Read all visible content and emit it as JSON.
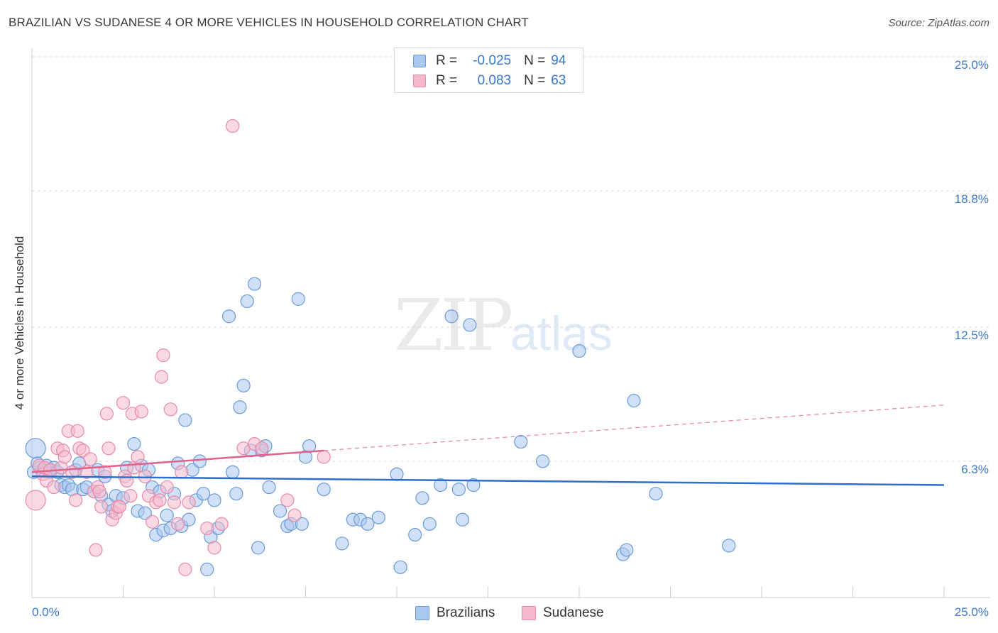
{
  "title": "BRAZILIAN VS SUDANESE 4 OR MORE VEHICLES IN HOUSEHOLD CORRELATION CHART",
  "source": "Source: ZipAtlas.com",
  "watermark": {
    "zip": "ZIP",
    "atlas": "atlas"
  },
  "legend": {
    "rows": [
      {
        "r_label": "R =",
        "r_value": "-0.025",
        "n_label": "N =",
        "n_value": "94"
      },
      {
        "r_label": "R =",
        "r_value": "0.083",
        "n_label": "N =",
        "n_value": "63"
      }
    ]
  },
  "bottom_legend": {
    "brazilians": "Brazilians",
    "sudanese": "Sudanese"
  },
  "colors": {
    "blue_fill": "#aac7ee",
    "blue_stroke": "#6a9bd8",
    "blue_line": "#2f6fca",
    "pink_fill": "#f6b9cc",
    "pink_stroke": "#e88aa8",
    "pink_line": "#e0628f",
    "tick": "#3b78c9",
    "grid": "#d9d9d9"
  },
  "chart_data": {
    "type": "scatter",
    "title": "BRAZILIAN VS SUDANESE 4 OR MORE VEHICLES IN HOUSEHOLD CORRELATION CHART",
    "xlabel": "",
    "ylabel": "4 or more Vehicles in Household",
    "xlim": [
      0,
      25
    ],
    "ylim": [
      0,
      25
    ],
    "x_tick_labels": [
      "0.0%",
      "25.0%"
    ],
    "y_ticks": [
      6.3,
      12.5,
      18.8,
      25.0
    ],
    "y_tick_labels": [
      "6.3%",
      "12.5%",
      "18.8%",
      "25.0%"
    ],
    "grid": "horizontal dashed",
    "legend_position": "top-center",
    "series": [
      {
        "name": "Brazilians",
        "r": -0.025,
        "n": 94,
        "trend": {
          "x0": 0,
          "y0": 5.6,
          "x1": 25,
          "y1": 5.2
        },
        "points": [
          [
            0.1,
            6.9
          ],
          [
            0.2,
            6.0
          ],
          [
            0.3,
            5.9
          ],
          [
            0.4,
            6.1
          ],
          [
            0.5,
            5.8
          ],
          [
            0.6,
            6.0
          ],
          [
            0.7,
            5.8
          ],
          [
            0.8,
            5.2
          ],
          [
            0.9,
            5.1
          ],
          [
            1.0,
            5.2
          ],
          [
            1.1,
            5.0
          ],
          [
            1.2,
            5.9
          ],
          [
            1.3,
            6.2
          ],
          [
            1.4,
            5.0
          ],
          [
            1.5,
            5.1
          ],
          [
            1.7,
            4.9
          ],
          [
            1.8,
            5.9
          ],
          [
            1.9,
            4.7
          ],
          [
            2.0,
            5.6
          ],
          [
            2.1,
            4.3
          ],
          [
            2.2,
            4.0
          ],
          [
            2.3,
            4.7
          ],
          [
            2.5,
            4.6
          ],
          [
            2.6,
            6.0
          ],
          [
            2.8,
            7.1
          ],
          [
            2.9,
            4.0
          ],
          [
            3.0,
            6.1
          ],
          [
            3.1,
            3.9
          ],
          [
            3.2,
            5.9
          ],
          [
            3.3,
            5.1
          ],
          [
            3.4,
            2.9
          ],
          [
            3.5,
            4.9
          ],
          [
            3.6,
            3.1
          ],
          [
            3.7,
            3.8
          ],
          [
            3.8,
            3.2
          ],
          [
            3.9,
            4.8
          ],
          [
            4.0,
            6.2
          ],
          [
            4.1,
            3.3
          ],
          [
            4.2,
            8.2
          ],
          [
            4.3,
            3.6
          ],
          [
            4.4,
            5.9
          ],
          [
            4.5,
            4.5
          ],
          [
            4.6,
            6.3
          ],
          [
            4.7,
            4.8
          ],
          [
            4.8,
            1.3
          ],
          [
            4.9,
            2.8
          ],
          [
            5.0,
            4.5
          ],
          [
            5.1,
            3.2
          ],
          [
            5.4,
            13.0
          ],
          [
            5.5,
            5.8
          ],
          [
            5.6,
            4.8
          ],
          [
            5.7,
            8.8
          ],
          [
            5.8,
            9.8
          ],
          [
            5.9,
            13.7
          ],
          [
            6.0,
            6.8
          ],
          [
            6.1,
            14.5
          ],
          [
            6.2,
            2.3
          ],
          [
            6.3,
            6.8
          ],
          [
            6.4,
            7.0
          ],
          [
            6.5,
            5.1
          ],
          [
            6.8,
            4.0
          ],
          [
            7.0,
            3.3
          ],
          [
            7.1,
            3.4
          ],
          [
            7.3,
            13.8
          ],
          [
            7.4,
            3.4
          ],
          [
            7.5,
            6.5
          ],
          [
            7.6,
            7.0
          ],
          [
            8.0,
            5.0
          ],
          [
            8.5,
            2.5
          ],
          [
            8.8,
            3.6
          ],
          [
            9.0,
            3.6
          ],
          [
            9.2,
            3.4
          ],
          [
            9.5,
            3.7
          ],
          [
            10.0,
            5.7
          ],
          [
            10.1,
            1.4
          ],
          [
            10.5,
            2.9
          ],
          [
            10.7,
            4.6
          ],
          [
            10.9,
            3.4
          ],
          [
            11.2,
            5.2
          ],
          [
            11.5,
            13.0
          ],
          [
            11.7,
            5.0
          ],
          [
            11.8,
            3.6
          ],
          [
            12.0,
            12.6
          ],
          [
            12.1,
            5.2
          ],
          [
            13.4,
            7.2
          ],
          [
            14.0,
            6.3
          ],
          [
            15.0,
            11.4
          ],
          [
            16.2,
            2.0
          ],
          [
            16.3,
            2.2
          ],
          [
            16.5,
            9.1
          ],
          [
            17.1,
            4.8
          ],
          [
            19.1,
            2.4
          ],
          [
            0.05,
            5.8
          ],
          [
            0.15,
            6.2
          ]
        ]
      },
      {
        "name": "Sudanese",
        "r": 0.083,
        "n": 63,
        "trend": {
          "x0": 0,
          "y0": 5.8,
          "x1": 25,
          "y1": 8.9
        },
        "trend_solid_until_x": 8.0,
        "points": [
          [
            0.1,
            4.5
          ],
          [
            0.2,
            6.1
          ],
          [
            0.3,
            5.7
          ],
          [
            0.35,
            6.0
          ],
          [
            0.4,
            5.4
          ],
          [
            0.5,
            5.9
          ],
          [
            0.6,
            5.1
          ],
          [
            0.7,
            6.9
          ],
          [
            0.8,
            6.0
          ],
          [
            0.85,
            6.8
          ],
          [
            0.9,
            6.5
          ],
          [
            1.0,
            7.7
          ],
          [
            1.1,
            5.8
          ],
          [
            1.2,
            4.5
          ],
          [
            1.25,
            7.7
          ],
          [
            1.3,
            6.9
          ],
          [
            1.4,
            6.8
          ],
          [
            1.5,
            5.8
          ],
          [
            1.6,
            6.4
          ],
          [
            1.7,
            4.9
          ],
          [
            1.75,
            2.2
          ],
          [
            1.8,
            5.1
          ],
          [
            1.85,
            4.9
          ],
          [
            1.9,
            4.2
          ],
          [
            2.0,
            5.8
          ],
          [
            2.05,
            8.5
          ],
          [
            2.1,
            6.9
          ],
          [
            2.2,
            3.6
          ],
          [
            2.3,
            3.9
          ],
          [
            2.35,
            4.2
          ],
          [
            2.4,
            4.2
          ],
          [
            2.5,
            9.0
          ],
          [
            2.55,
            5.6
          ],
          [
            2.6,
            5.4
          ],
          [
            2.7,
            4.7
          ],
          [
            2.75,
            8.5
          ],
          [
            2.8,
            6.0
          ],
          [
            2.9,
            6.5
          ],
          [
            3.0,
            8.6
          ],
          [
            3.1,
            5.6
          ],
          [
            3.2,
            4.7
          ],
          [
            3.3,
            3.5
          ],
          [
            3.4,
            4.4
          ],
          [
            3.5,
            4.5
          ],
          [
            3.55,
            10.2
          ],
          [
            3.6,
            11.2
          ],
          [
            3.7,
            5.1
          ],
          [
            3.8,
            8.7
          ],
          [
            3.9,
            4.4
          ],
          [
            4.0,
            3.4
          ],
          [
            4.1,
            5.8
          ],
          [
            4.2,
            1.3
          ],
          [
            4.3,
            4.4
          ],
          [
            4.8,
            3.2
          ],
          [
            5.0,
            2.3
          ],
          [
            5.2,
            3.4
          ],
          [
            5.5,
            21.8
          ],
          [
            5.8,
            6.9
          ],
          [
            6.1,
            7.1
          ],
          [
            6.3,
            6.9
          ],
          [
            7.0,
            4.5
          ],
          [
            7.2,
            3.8
          ],
          [
            8.0,
            6.5
          ]
        ]
      }
    ]
  }
}
